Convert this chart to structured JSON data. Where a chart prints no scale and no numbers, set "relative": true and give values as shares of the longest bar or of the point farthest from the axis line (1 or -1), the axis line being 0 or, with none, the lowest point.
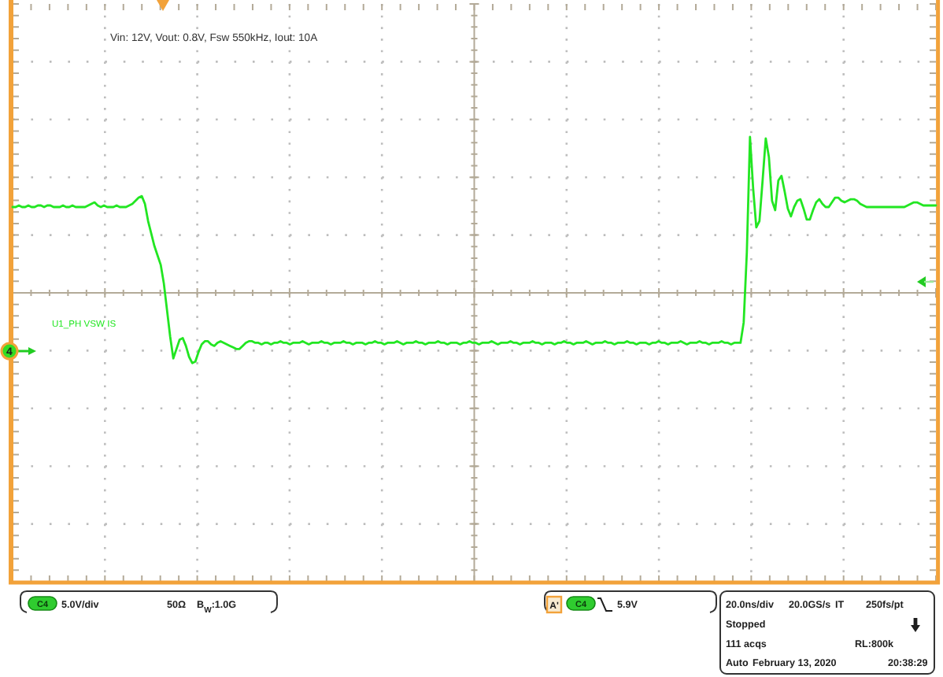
{
  "chart_data": {
    "type": "line",
    "title": "Vin: 12V, Vout: 0.8V, Fsw 550kHz, Iout: 10A",
    "relative": true,
    "grid": true,
    "categories": [
      null,
      null,
      null,
      null,
      null,
      null,
      null,
      null,
      null,
      null,
      null,
      null,
      null,
      null,
      null,
      null,
      null,
      null,
      null,
      null,
      null,
      null,
      null,
      null,
      null,
      null,
      null,
      null,
      null,
      null,
      null,
      null,
      null,
      null,
      null,
      null,
      null,
      null,
      null,
      null,
      null,
      null,
      null,
      null,
      null,
      null,
      null,
      null,
      null,
      null,
      null,
      null,
      null,
      null,
      null,
      null,
      null,
      null,
      null,
      null,
      null,
      null,
      null,
      null,
      null,
      null,
      null,
      null,
      null,
      null,
      null,
      null,
      null,
      null,
      null,
      null,
      null,
      null,
      null,
      null,
      null,
      null,
      null,
      null,
      null,
      null,
      null,
      null,
      null,
      null,
      null,
      null,
      null,
      null,
      null,
      null,
      null,
      null,
      null,
      null,
      null,
      null,
      null,
      null,
      null,
      null,
      null,
      null,
      null,
      null,
      null,
      null,
      null,
      null,
      null,
      null,
      null,
      null,
      null,
      null,
      null,
      null,
      null,
      null,
      null,
      null,
      null,
      null,
      null,
      null,
      null,
      null,
      null,
      null,
      null,
      null,
      null,
      null,
      null,
      null,
      null,
      null,
      null,
      null,
      null,
      null,
      null,
      null,
      null,
      null,
      null,
      null,
      null,
      null,
      null,
      null,
      null,
      null,
      null,
      null,
      null,
      null,
      null,
      null,
      null,
      null,
      null,
      null,
      null,
      null,
      null,
      null,
      null,
      null,
      null,
      null,
      null,
      null,
      null,
      null,
      null,
      null,
      null,
      null,
      null,
      null,
      null,
      null,
      null,
      null,
      null,
      null,
      null,
      null,
      null,
      null,
      null,
      null,
      null,
      null,
      null,
      null,
      null,
      null,
      null,
      null,
      null,
      null,
      null,
      null,
      null,
      null,
      null,
      null,
      null,
      null,
      null,
      null,
      null,
      null,
      null,
      null,
      null,
      null,
      null,
      null,
      null,
      null,
      null,
      null,
      null,
      null,
      null,
      null,
      null,
      null,
      null,
      null,
      null,
      null,
      null,
      null,
      null,
      null,
      null,
      null,
      null,
      null,
      null,
      null,
      null,
      null,
      null,
      null,
      null,
      null,
      null,
      null,
      null,
      null,
      null,
      null,
      null,
      null,
      null,
      null,
      null,
      null,
      null,
      null,
      null,
      null,
      null,
      null,
      null,
      null,
      null,
      null,
      null,
      null,
      null,
      null,
      null,
      null,
      null,
      null,
      null,
      null,
      null,
      null,
      null,
      null,
      null,
      null
    ],
    "series": [
      {
        "name": "U1_PH VSW IS",
        "color": "#22e622",
        "values": [
          0.55,
          0.55,
          0.56,
          0.55,
          0.55,
          0.56,
          0.55,
          0.55,
          0.56,
          0.56,
          0.55,
          0.56,
          0.56,
          0.55,
          0.55,
          0.55,
          0.56,
          0.55,
          0.55,
          0.56,
          0.55,
          0.55,
          0.55,
          0.55,
          0.56,
          0.57,
          0.58,
          0.56,
          0.55,
          0.56,
          0.55,
          0.55,
          0.55,
          0.56,
          0.55,
          0.55,
          0.55,
          0.56,
          0.57,
          0.59,
          0.61,
          0.62,
          0.57,
          0.46,
          0.38,
          0.3,
          0.24,
          0.18,
          0.06,
          -0.11,
          -0.28,
          -0.42,
          -0.36,
          -0.3,
          -0.29,
          -0.34,
          -0.41,
          -0.45,
          -0.44,
          -0.38,
          -0.33,
          -0.31,
          -0.31,
          -0.33,
          -0.34,
          -0.32,
          -0.31,
          -0.32,
          -0.33,
          -0.34,
          -0.35,
          -0.36,
          -0.36,
          -0.34,
          -0.32,
          -0.31,
          -0.31,
          -0.32,
          -0.32,
          -0.33,
          -0.32,
          -0.32,
          -0.33,
          -0.32,
          -0.32,
          -0.31,
          -0.32,
          -0.32,
          -0.33,
          -0.32,
          -0.32,
          -0.32,
          -0.31,
          -0.32,
          -0.33,
          -0.32,
          -0.32,
          -0.32,
          -0.31,
          -0.32,
          -0.32,
          -0.33,
          -0.32,
          -0.32,
          -0.32,
          -0.31,
          -0.32,
          -0.32,
          -0.33,
          -0.32,
          -0.32,
          -0.32,
          -0.33,
          -0.32,
          -0.32,
          -0.31,
          -0.32,
          -0.32,
          -0.33,
          -0.32,
          -0.32,
          -0.32,
          -0.31,
          -0.32,
          -0.33,
          -0.32,
          -0.32,
          -0.32,
          -0.31,
          -0.32,
          -0.32,
          -0.33,
          -0.32,
          -0.32,
          -0.32,
          -0.31,
          -0.32,
          -0.32,
          -0.33,
          -0.32,
          -0.32,
          -0.32,
          -0.33,
          -0.32,
          -0.32,
          -0.31,
          -0.32,
          -0.32,
          -0.33,
          -0.32,
          -0.32,
          -0.32,
          -0.31,
          -0.32,
          -0.33,
          -0.32,
          -0.32,
          -0.32,
          -0.31,
          -0.32,
          -0.32,
          -0.33,
          -0.32,
          -0.32,
          -0.32,
          -0.31,
          -0.32,
          -0.32,
          -0.33,
          -0.32,
          -0.32,
          -0.32,
          -0.33,
          -0.32,
          -0.32,
          -0.31,
          -0.32,
          -0.32,
          -0.33,
          -0.32,
          -0.32,
          -0.32,
          -0.31,
          -0.32,
          -0.33,
          -0.32,
          -0.32,
          -0.32,
          -0.31,
          -0.32,
          -0.32,
          -0.33,
          -0.32,
          -0.32,
          -0.32,
          -0.31,
          -0.32,
          -0.32,
          -0.33,
          -0.32,
          -0.32,
          -0.32,
          -0.33,
          -0.32,
          -0.32,
          -0.31,
          -0.32,
          -0.32,
          -0.33,
          -0.32,
          -0.32,
          -0.32,
          -0.31,
          -0.32,
          -0.33,
          -0.32,
          -0.32,
          -0.32,
          -0.31,
          -0.32,
          -0.32,
          -0.33,
          -0.32,
          -0.32,
          -0.32,
          -0.31,
          -0.32,
          -0.32,
          -0.33,
          -0.32,
          -0.32,
          -0.32,
          -0.19,
          0.26,
          1,
          0.67,
          0.42,
          0.46,
          0.72,
          0.99,
          0.87,
          0.59,
          0.53,
          0.72,
          0.75,
          0.65,
          0.54,
          0.49,
          0.55,
          0.59,
          0.6,
          0.54,
          0.47,
          0.47,
          0.53,
          0.58,
          0.6,
          0.57,
          0.55,
          0.55,
          0.58,
          0.61,
          0.61,
          0.59,
          0.58,
          0.59,
          0.6,
          0.6,
          0.59,
          0.57,
          0.56,
          0.55,
          0.55,
          0.55,
          0.55,
          0.55,
          0.55,
          0.55,
          0.55,
          0.55,
          0.55,
          0.55,
          0.55,
          0.55,
          0.56,
          0.57,
          0.58,
          0.58,
          0.57,
          0.56,
          0.56,
          0.56,
          0.56,
          0.56
        ]
      }
    ],
    "annotations": [
      "4",
      "C4",
      "5.0V/div",
      "50Ω",
      "B$_{W}$:1.0G",
      "A'",
      "C4",
      "5.9V",
      "20.0ns/div",
      "20.0GS/s",
      "IT",
      "250fs/pt",
      "Stopped",
      "111 acqs",
      "RL:800k",
      "Auto",
      "February 13, 2020",
      "20:38:29"
    ]
  }
}
